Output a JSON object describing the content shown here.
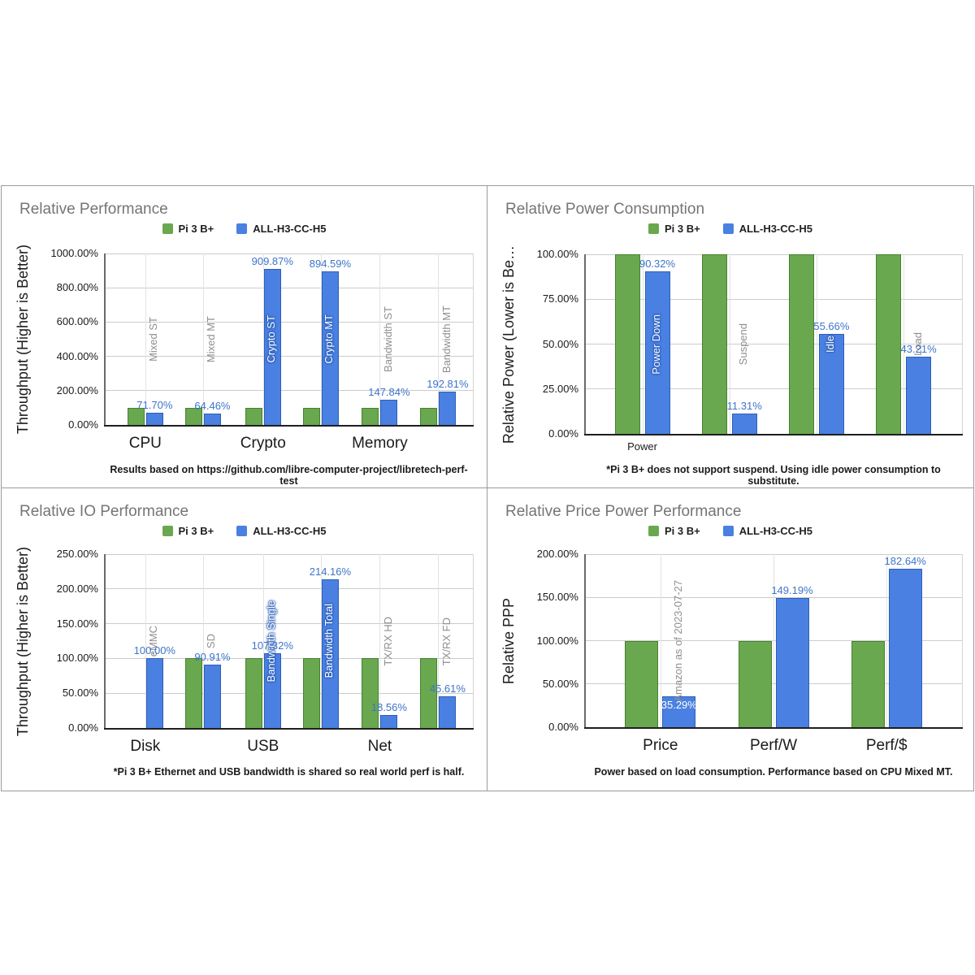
{
  "colors": {
    "green": "#69a84f",
    "green_border": "#45822f",
    "blue": "#4a80e1",
    "blue_border": "#2d5fb8",
    "value_label_blue": "#3e74c9",
    "title_gray": "#757575",
    "point_label_gray": "#8f8f8f"
  },
  "legend": {
    "series": [
      {
        "label": "Pi 3 B+",
        "color": "#69a84f"
      },
      {
        "label": "ALL-H3-CC-H5",
        "color": "#4a80e1"
      }
    ]
  },
  "chart_data": [
    {
      "type": "bar",
      "title": "Relative Performance",
      "y_axis_title": "Throughput (Higher is Better)",
      "footer": "Results based on https://github.com/libre-computer-project/libretech-perf-test",
      "y_min": 0,
      "y_max": 1000,
      "y_tick_step": 200,
      "y_tick_labels": [
        "0.00%",
        "200.00%",
        "400.00%",
        "600.00%",
        "800.00%",
        "1000.00%"
      ],
      "series_names": [
        "Pi 3 B+",
        "ALL-H3-CC-H5"
      ],
      "groups": [
        {
          "name": "Mixed ST",
          "pi3b": 100,
          "allh3": 71.7,
          "value_label": "71.70%",
          "label_style": "gray",
          "value_pos": "above"
        },
        {
          "name": "Mixed MT",
          "pi3b": 100,
          "allh3": 64.46,
          "value_label": "64.46%",
          "label_style": "gray",
          "value_pos": "above"
        },
        {
          "name": "Crypto ST",
          "pi3b": 100,
          "allh3": 909.87,
          "value_label": "909.87%",
          "label_style": "white",
          "value_pos": "above"
        },
        {
          "name": "Crypto MT",
          "pi3b": 100,
          "allh3": 894.59,
          "value_label": "894.59%",
          "label_style": "white",
          "value_pos": "above"
        },
        {
          "name": "Bandwidth ST",
          "pi3b": 100,
          "allh3": 147.84,
          "value_label": "147.84%",
          "label_style": "gray",
          "value_pos": "above"
        },
        {
          "name": "Bandwidth MT",
          "pi3b": 100,
          "allh3": 192.81,
          "value_label": "192.81%",
          "label_style": "gray",
          "value_pos": "above"
        }
      ],
      "category_ticks": [
        {
          "label": "CPU",
          "group_index": 0
        },
        {
          "label": "Crypto",
          "group_index": 2
        },
        {
          "label": "Memory",
          "group_index": 4
        }
      ]
    },
    {
      "type": "bar",
      "title": "Relative Power Consumption",
      "y_axis_title": "Relative Power (Lower is Be…",
      "footer": "*Pi 3 B+ does not support suspend. Using idle power consumption to substitute.",
      "y_min": 0,
      "y_max": 100,
      "y_tick_step": 25,
      "y_tick_labels": [
        "0.00%",
        "25.00%",
        "50.00%",
        "75.00%",
        "100.00%"
      ],
      "series_names": [
        "Pi 3 B+",
        "ALL-H3-CC-H5"
      ],
      "groups": [
        {
          "name": "Power Down",
          "pi3b": 100,
          "allh3": 90.32,
          "value_label": "90.32%",
          "label_style": "white",
          "value_pos": "above"
        },
        {
          "name": "Suspend",
          "pi3b": 100,
          "allh3": 11.31,
          "value_label": "11.31%",
          "label_style": "gray",
          "value_pos": "above"
        },
        {
          "name": "Idle",
          "pi3b": 100,
          "allh3": 55.66,
          "value_label": "55.66%",
          "label_style": "white",
          "value_pos": "above"
        },
        {
          "name": "Load",
          "pi3b": 100,
          "allh3": 43.21,
          "value_label": "43.21%",
          "label_style": "gray",
          "value_pos": "above"
        }
      ],
      "category_ticks": [
        {
          "label": "Power",
          "group_index": 0
        }
      ]
    },
    {
      "type": "bar",
      "title": "Relative IO Performance",
      "y_axis_title": "Throughput (Higher is Better)",
      "footer": "*Pi 3 B+ Ethernet and USB bandwidth is shared so real world perf is half.",
      "y_min": 0,
      "y_max": 250,
      "y_tick_step": 50,
      "y_tick_labels": [
        "0.00%",
        "50.00%",
        "100.00%",
        "150.00%",
        "200.00%",
        "250.00%"
      ],
      "series_names": [
        "Pi 3 B+",
        "ALL-H3-CC-H5"
      ],
      "groups": [
        {
          "name": "eMMC",
          "pi3b": null,
          "allh3": 100.0,
          "value_label": "100.00%",
          "label_style": "gray",
          "value_pos": "above"
        },
        {
          "name": "SD",
          "pi3b": 100,
          "allh3": 90.91,
          "value_label": "90.91%",
          "label_style": "gray",
          "value_pos": "above"
        },
        {
          "name": "Bandwidth Single",
          "pi3b": 100,
          "allh3": 107.32,
          "value_label": "107.32%",
          "label_style": "white",
          "value_pos": "above"
        },
        {
          "name": "Bandwidth Total",
          "pi3b": 100,
          "allh3": 214.16,
          "value_label": "214.16%",
          "label_style": "white",
          "value_pos": "above"
        },
        {
          "name": "TX/RX HD",
          "pi3b": 100,
          "allh3": 18.56,
          "value_label": "18.56%",
          "label_style": "gray",
          "value_pos": "above"
        },
        {
          "name": "TX/RX FD",
          "pi3b": 100,
          "allh3": 45.61,
          "value_label": "45.61%",
          "label_style": "gray",
          "value_pos": "above"
        }
      ],
      "category_ticks": [
        {
          "label": "Disk",
          "group_index": 0
        },
        {
          "label": "USB",
          "group_index": 2
        },
        {
          "label": "Net",
          "group_index": 4
        }
      ]
    },
    {
      "type": "bar",
      "title": "Relative Price Power Performance",
      "y_axis_title": "Relative PPP",
      "footer": "Power based on load consumption. Performance based on CPU Mixed MT.",
      "y_min": 0,
      "y_max": 200,
      "y_tick_step": 50,
      "y_tick_labels": [
        "0.00%",
        "50.00%",
        "100.00%",
        "150.00%",
        "200.00%"
      ],
      "series_names": [
        "Pi 3 B+",
        "ALL-H3-CC-H5"
      ],
      "groups": [
        {
          "name": "Amazon as of 2023-07-27",
          "pi3b": 100,
          "allh3": 35.29,
          "value_label": "35.29%",
          "label_style": "gray",
          "value_pos": "inside"
        },
        {
          "name": "",
          "pi3b": 100,
          "allh3": 149.19,
          "value_label": "149.19%",
          "label_style": "gray",
          "value_pos": "above"
        },
        {
          "name": "",
          "pi3b": 100,
          "allh3": 182.64,
          "value_label": "182.64%",
          "label_style": "gray",
          "value_pos": "above"
        }
      ],
      "category_ticks": [
        {
          "label": "Price",
          "group_index": 0
        },
        {
          "label": "Perf/W",
          "group_index": 1
        },
        {
          "label": "Perf/$",
          "group_index": 2
        }
      ]
    }
  ]
}
